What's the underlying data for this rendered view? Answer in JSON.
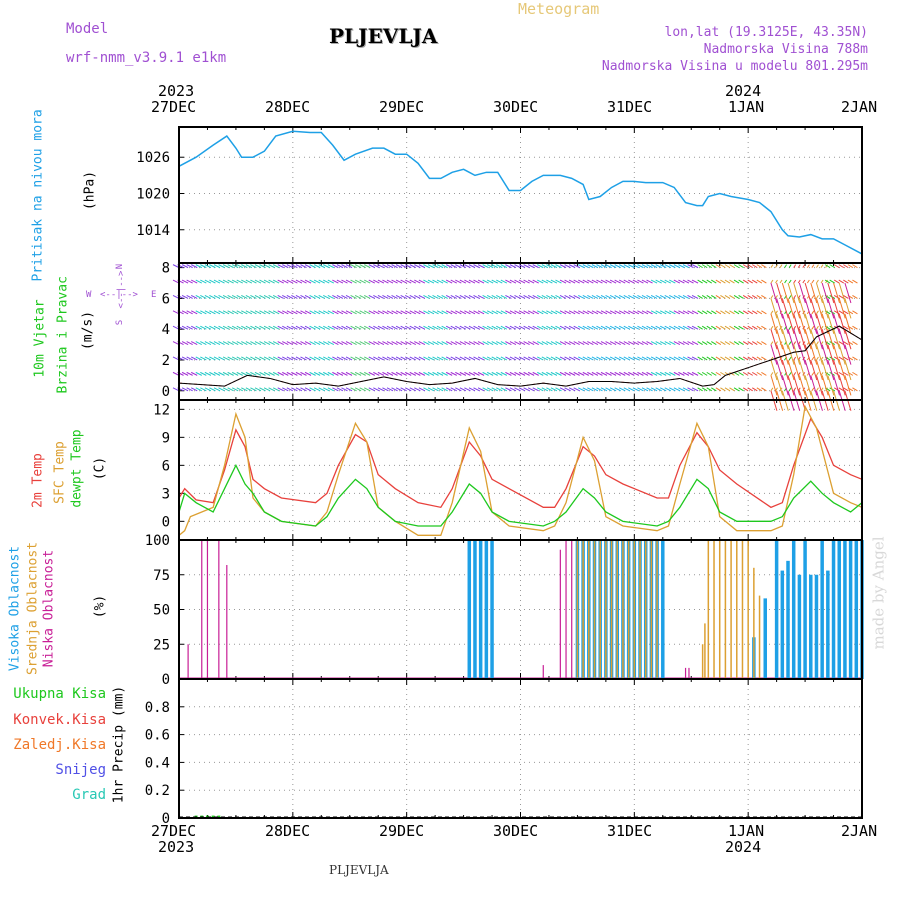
{
  "header": {
    "model_label": "Model",
    "model_name": "wrf-nmm_v3.9.1 e1km",
    "station": "PLJEVLJA",
    "meteogram": "Meteogram",
    "coords": "lon,lat (19.3125E, 43.35N)",
    "elevation": "Nadmorska Visina 788m",
    "model_elevation": "Nadmorska Visina u modelu 801.295m"
  },
  "footer": {
    "station": "PLJEVLJA"
  },
  "watermark": "made by Angel",
  "colors": {
    "pressure": "#1ea0e6",
    "temp2m": "#e8413c",
    "sfc": "#dca032",
    "dewpt": "#1ec81e",
    "high": "#1ea0e6",
    "mid": "#dca032",
    "low": "#c81e96",
    "wind_axis": "#a050d2"
  },
  "x_axis": {
    "top_years": [
      "2023",
      "2024"
    ],
    "bottom_years": [
      "2023",
      "2024"
    ],
    "ticks": [
      "27DEC",
      "28DEC",
      "29DEC",
      "30DEC",
      "31DEC",
      "1JAN",
      "2JAN"
    ]
  },
  "panels": {
    "pressure": {
      "label": "Pritisak na nivou mora",
      "unit": "(hPa)"
    },
    "wind": {
      "label1": "10m Vjetar",
      "label2": "Brzina i Pravac",
      "unit": "(m/s)",
      "compass_n": "N",
      "compass_w": "W",
      "compass_e": "E",
      "compass_s": "S",
      "compass_line1": "<--|-->",
      "compass_line2": "<--|-->"
    },
    "temp": {
      "label_2m": "2m Temp",
      "label_sfc": "SFC Temp",
      "label_dew": "dewpt Temp",
      "unit": "(C)"
    },
    "cloud": {
      "label_high": "Visoka Oblacnost",
      "label_mid": "Srednja Oblacnost",
      "label_low": "Niska Oblacnost",
      "unit": "(%)"
    },
    "precip": {
      "legend": [
        "Ukupna Kisa",
        "Konvek.Kisa",
        "Zaledj.Kisa",
        "Snijeg",
        "Grad"
      ],
      "legend_colors": [
        "#1ec81e",
        "#e8413c",
        "#f07828",
        "#5050e6",
        "#28c8b4"
      ],
      "unit": "1hr Precip (mm)"
    }
  },
  "chart_data": [
    {
      "type": "line",
      "title": "Pritisak na nivou mora",
      "ylabel": "(hPa)",
      "ylim": [
        1008.5,
        1031
      ],
      "yticks": [
        1014,
        1020,
        1026
      ],
      "grid": true,
      "x_unit": "days from 27DEC 00Z",
      "series": [
        {
          "name": "Pritisak na nivou mora",
          "x": [
            0,
            0.15,
            0.3,
            0.42,
            0.5,
            0.55,
            0.65,
            0.75,
            0.85,
            1.0,
            1.15,
            1.25,
            1.35,
            1.45,
            1.55,
            1.7,
            1.8,
            1.9,
            2.0,
            2.1,
            2.2,
            2.3,
            2.4,
            2.5,
            2.55,
            2.6,
            2.7,
            2.8,
            2.9,
            3.0,
            3.1,
            3.2,
            3.35,
            3.45,
            3.55,
            3.6,
            3.7,
            3.8,
            3.9,
            4.0,
            4.1,
            4.25,
            4.35,
            4.45,
            4.55,
            4.6,
            4.65,
            4.75,
            4.85,
            5.0,
            5.1,
            5.2,
            5.3,
            5.35,
            5.45,
            5.55,
            5.65,
            5.75,
            5.85,
            6.0
          ],
          "values": [
            1024.5,
            1026,
            1028,
            1029.5,
            1027.5,
            1026,
            1026,
            1027,
            1029.5,
            1030.3,
            1030.1,
            1030.1,
            1028,
            1025.5,
            1026.5,
            1027.5,
            1027.5,
            1026.5,
            1026.5,
            1025,
            1022.5,
            1022.5,
            1023.5,
            1024,
            1023.5,
            1023,
            1023.5,
            1023.5,
            1020.5,
            1020.5,
            1022,
            1023,
            1023,
            1022.5,
            1021.5,
            1019,
            1019.5,
            1021,
            1022,
            1022,
            1021.8,
            1021.8,
            1021,
            1018.5,
            1018,
            1018,
            1019.5,
            1020,
            1019.5,
            1019,
            1018.5,
            1017,
            1014,
            1013,
            1012.8,
            1013.2,
            1012.5,
            1012.5,
            1011.5,
            1010
          ]
        }
      ]
    },
    {
      "type": "wind-barbs",
      "title": "10m Vjetar Brzina i Pravac",
      "ylabel": "(m/s)",
      "ylim": [
        -0.6,
        8.3
      ],
      "yticks": [
        0,
        2,
        4,
        6,
        8
      ],
      "grid": true,
      "x_unit": "days from 27DEC 00Z",
      "series": [
        {
          "name": "speed",
          "x": [
            0,
            0.2,
            0.4,
            0.6,
            0.8,
            1.0,
            1.2,
            1.4,
            1.6,
            1.8,
            2.0,
            2.2,
            2.4,
            2.6,
            2.8,
            3.0,
            3.2,
            3.4,
            3.6,
            3.8,
            4.0,
            4.2,
            4.4,
            4.6,
            4.7,
            4.8,
            5.0,
            5.2,
            5.4,
            5.5,
            5.6,
            5.8,
            6.0
          ],
          "values": [
            0.5,
            0.4,
            0.3,
            1.0,
            0.8,
            0.4,
            0.5,
            0.3,
            0.6,
            0.9,
            0.6,
            0.4,
            0.5,
            0.8,
            0.4,
            0.3,
            0.5,
            0.3,
            0.6,
            0.6,
            0.5,
            0.6,
            0.8,
            0.3,
            0.4,
            1.0,
            1.5,
            2.0,
            2.5,
            2.6,
            3.5,
            4.2,
            3.3
          ]
        }
      ]
    },
    {
      "type": "line",
      "title": "2m Temp / SFC Temp / dewpt Temp",
      "ylabel": "(C)",
      "ylim": [
        -2,
        13
      ],
      "yticks": [
        0,
        3,
        6,
        9,
        12
      ],
      "grid": true,
      "x_unit": "days from 27DEC 00Z",
      "series": [
        {
          "name": "2m Temp",
          "x": [
            0,
            0.05,
            0.15,
            0.3,
            0.4,
            0.5,
            0.58,
            0.65,
            0.75,
            0.9,
            1.2,
            1.3,
            1.4,
            1.55,
            1.65,
            1.75,
            1.9,
            2.1,
            2.3,
            2.4,
            2.55,
            2.65,
            2.75,
            2.9,
            3.2,
            3.3,
            3.4,
            3.55,
            3.65,
            3.75,
            3.9,
            4.2,
            4.3,
            4.4,
            4.55,
            4.65,
            4.75,
            4.9,
            5.2,
            5.3,
            5.4,
            5.55,
            5.65,
            5.75,
            5.9,
            6.0
          ],
          "values": [
            2.5,
            3.5,
            2.3,
            2.0,
            5.5,
            9.8,
            8.0,
            4.5,
            3.5,
            2.5,
            2.0,
            3.0,
            6.0,
            9.3,
            8.5,
            5.0,
            3.5,
            2.0,
            1.5,
            3.5,
            8.5,
            7.0,
            4.5,
            3.5,
            1.5,
            1.5,
            3.5,
            8.0,
            7.0,
            5.0,
            4.0,
            2.5,
            2.5,
            6.0,
            9.5,
            8.0,
            5.5,
            4.0,
            1.5,
            2.0,
            6.0,
            11.0,
            9.0,
            6.0,
            5.0,
            4.5
          ]
        },
        {
          "name": "SFC Temp",
          "x": [
            0,
            0.05,
            0.1,
            0.2,
            0.3,
            0.4,
            0.5,
            0.58,
            0.65,
            0.75,
            0.9,
            1.2,
            1.3,
            1.4,
            1.55,
            1.65,
            1.75,
            1.9,
            2.1,
            2.3,
            2.4,
            2.55,
            2.65,
            2.75,
            2.9,
            3.2,
            3.3,
            3.4,
            3.55,
            3.65,
            3.75,
            3.9,
            4.2,
            4.3,
            4.4,
            4.55,
            4.65,
            4.75,
            4.9,
            5.2,
            5.3,
            5.4,
            5.5,
            5.6,
            5.75,
            5.9,
            6.0
          ],
          "values": [
            -1.5,
            -1.0,
            0.5,
            1.0,
            1.5,
            6.0,
            11.5,
            9.0,
            2.5,
            1.0,
            0.0,
            -0.5,
            1.0,
            5.0,
            10.5,
            8.5,
            1.5,
            0.0,
            -1.5,
            -1.5,
            2.0,
            10.0,
            7.5,
            1.0,
            -0.5,
            -1.0,
            -0.5,
            2.0,
            9.0,
            6.5,
            0.5,
            -0.5,
            -1.0,
            -0.5,
            4.0,
            10.5,
            8.0,
            0.5,
            -1.0,
            -1.0,
            -0.5,
            5.0,
            12.3,
            10.0,
            3.0,
            2.0,
            1.5
          ]
        },
        {
          "name": "dewpt Temp",
          "x": [
            0,
            0.05,
            0.15,
            0.3,
            0.4,
            0.5,
            0.58,
            0.65,
            0.75,
            0.9,
            1.2,
            1.3,
            1.4,
            1.55,
            1.65,
            1.75,
            1.9,
            2.1,
            2.3,
            2.4,
            2.55,
            2.65,
            2.75,
            2.9,
            3.2,
            3.3,
            3.4,
            3.55,
            3.65,
            3.75,
            3.9,
            4.2,
            4.3,
            4.4,
            4.55,
            4.65,
            4.75,
            4.9,
            5.2,
            5.3,
            5.4,
            5.55,
            5.65,
            5.75,
            5.9,
            6.0
          ],
          "values": [
            1.0,
            3.0,
            2.0,
            1.0,
            3.5,
            6.0,
            4.0,
            3.0,
            1.0,
            0.0,
            -0.5,
            0.5,
            2.5,
            4.5,
            3.5,
            1.5,
            0.0,
            -0.5,
            -0.5,
            1.0,
            4.0,
            3.0,
            1.0,
            0.0,
            -0.5,
            0.0,
            1.0,
            3.5,
            2.5,
            1.0,
            0.0,
            -0.5,
            0.0,
            1.5,
            4.5,
            3.5,
            1.0,
            0.0,
            0.0,
            0.5,
            2.5,
            4.3,
            3.0,
            2.0,
            1.0,
            2.0
          ]
        }
      ]
    },
    {
      "type": "bar",
      "title": "Visoka / Srednja / Niska Oblacnost",
      "ylabel": "(%)",
      "ylim": [
        0,
        100
      ],
      "yticks": [
        0,
        25,
        50,
        75,
        100
      ],
      "grid": true,
      "x_unit": "days from 27DEC 00Z",
      "series": [
        {
          "name": "Niska Oblacnost",
          "x": [
            0.08,
            0.2,
            0.25,
            0.35,
            0.42,
            3.2,
            3.35,
            3.4,
            3.45,
            4.45,
            4.48
          ],
          "values": [
            25,
            100,
            100,
            100,
            82,
            10,
            93,
            100,
            100,
            8,
            8
          ]
        },
        {
          "name": "Srednja Oblacnost",
          "x": [
            3.5,
            3.55,
            3.6,
            3.65,
            3.7,
            3.75,
            3.8,
            3.85,
            3.9,
            3.95,
            4.0,
            4.05,
            4.1,
            4.15,
            4.2,
            4.6,
            4.62,
            4.65,
            4.7,
            4.75,
            4.8,
            4.85,
            4.9,
            4.95,
            5.0,
            5.05,
            5.1
          ],
          "values": [
            100,
            100,
            100,
            100,
            100,
            100,
            100,
            100,
            100,
            100,
            100,
            100,
            100,
            100,
            100,
            25,
            40,
            100,
            100,
            100,
            100,
            100,
            100,
            100,
            100,
            80,
            60
          ]
        },
        {
          "name": "Visoka Oblacnost",
          "x": [
            2.55,
            2.6,
            2.65,
            2.7,
            2.75,
            3.5,
            3.55,
            3.6,
            3.65,
            3.7,
            3.75,
            3.8,
            3.85,
            3.9,
            3.95,
            4.0,
            4.05,
            4.1,
            4.15,
            4.2,
            4.25,
            5.05,
            5.15,
            5.25,
            5.3,
            5.35,
            5.4,
            5.45,
            5.5,
            5.55,
            5.6,
            5.65,
            5.7,
            5.75,
            5.8,
            5.85,
            5.9,
            5.95,
            6.0
          ],
          "values": [
            100,
            100,
            100,
            100,
            100,
            100,
            100,
            100,
            100,
            100,
            100,
            100,
            100,
            100,
            100,
            100,
            100,
            100,
            100,
            100,
            100,
            30,
            58,
            100,
            78,
            85,
            100,
            75,
            100,
            75,
            75,
            100,
            78,
            100,
            100,
            100,
            100,
            100,
            100
          ]
        }
      ]
    },
    {
      "type": "bar",
      "title": "1hr Precip",
      "ylabel": "1hr Precip (mm)",
      "ylim": [
        0,
        1
      ],
      "yticks": [
        0,
        0.2,
        0.4,
        0.6,
        0.8
      ],
      "grid": true,
      "x_unit": "days from 27DEC 00Z",
      "series": [
        {
          "name": "Ukupna Kisa",
          "x": [
            0.15,
            0.2,
            0.25,
            0.3,
            0.35
          ],
          "values": [
            0.01,
            0.01,
            0.01,
            0.01,
            0.01
          ]
        }
      ]
    }
  ]
}
